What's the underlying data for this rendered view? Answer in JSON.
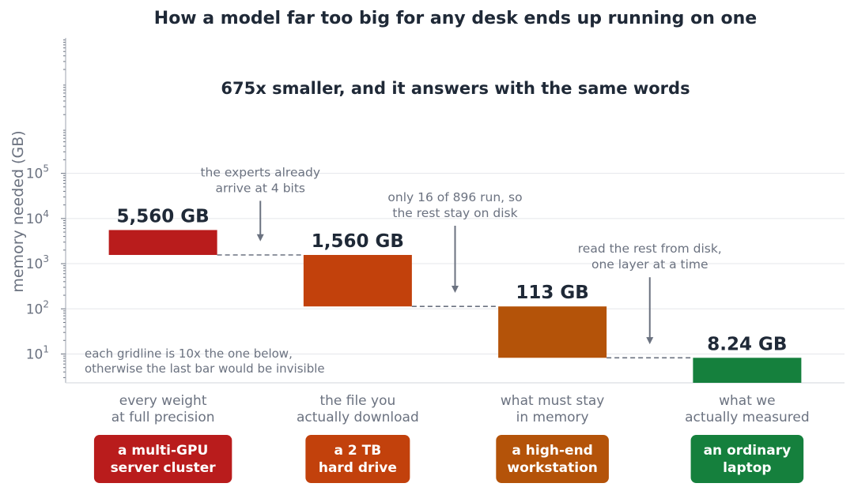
{
  "chart_data": {
    "type": "bar",
    "title": "How a model far too big for any desk ends up running on one",
    "subtitle": "675x smaller, and it answers with the same words",
    "ylabel": "memory needed (GB)",
    "yscale": "log",
    "ylim": [
      2.3,
      100000000
    ],
    "y_ticks": [
      {
        "base": "10",
        "exp": "1",
        "value": 10
      },
      {
        "base": "10",
        "exp": "2",
        "value": 100
      },
      {
        "base": "10",
        "exp": "3",
        "value": 1000
      },
      {
        "base": "10",
        "exp": "4",
        "value": 10000
      },
      {
        "base": "10",
        "exp": "5",
        "value": 100000
      }
    ],
    "grid": true,
    "categories": [
      "every weight\nat full precision",
      "the file you\nactually download",
      "what must stay\nin memory",
      "what we\nactually measured"
    ],
    "values": [
      5560,
      1560,
      113,
      8.24
    ],
    "value_labels": [
      "5,560 GB",
      "1,560 GB",
      "113 GB",
      "8.24 GB"
    ],
    "badges": [
      "a multi-GPU\nserver cluster",
      "a 2 TB\nhard drive",
      "a high-end\nworkstation",
      "an ordinary\nlaptop"
    ],
    "colors": [
      "#b91c1c",
      "#c2410c",
      "#b45309",
      "#15803d"
    ],
    "annotations": [
      {
        "text": "the experts already\narrive at 4 bits",
        "between": [
          0,
          1
        ]
      },
      {
        "text": "only 16 of 896 run, so\nthe rest stay on disk",
        "between": [
          1,
          2
        ]
      },
      {
        "text": "read the rest from disk,\none layer at a time",
        "between": [
          2,
          3
        ]
      }
    ],
    "note": "each gridline is 10x the one below,\notherwise the last bar would be invisible"
  }
}
